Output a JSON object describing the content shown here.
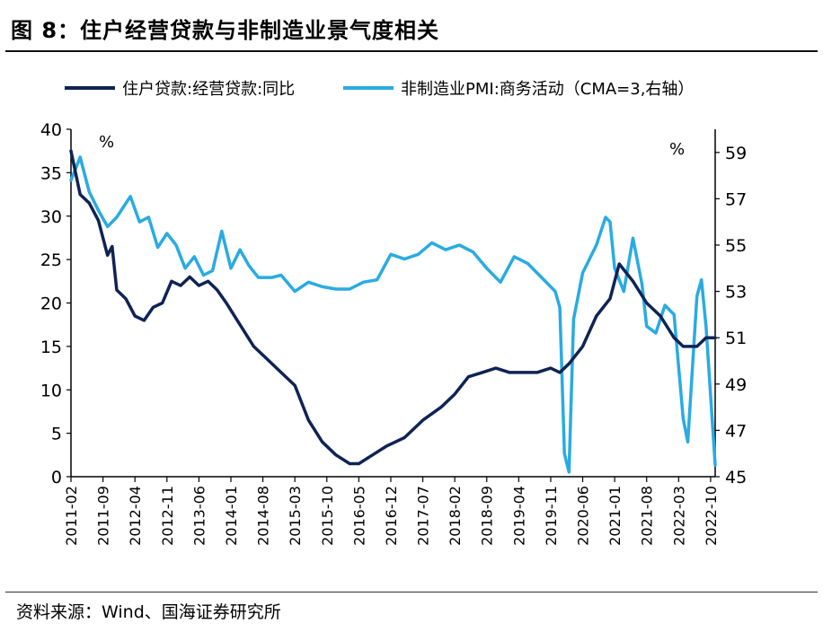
{
  "figure": {
    "title": "图 8：住户经营贷款与非制造业景气度相关",
    "source": "资料来源：Wind、国海证券研究所"
  },
  "colors": {
    "series1": "#0f2355",
    "series2": "#29abe2",
    "axis": "#000000"
  },
  "chart_data": {
    "type": "line",
    "title": "",
    "unit_left": "%",
    "unit_right": "%",
    "yleft": {
      "min": 0,
      "max": 40,
      "ticks": [
        0,
        5,
        10,
        15,
        20,
        25,
        30,
        35,
        40
      ]
    },
    "yright": {
      "min": 45,
      "max": 60,
      "ticks": [
        45,
        47,
        49,
        51,
        53,
        55,
        57,
        59
      ]
    },
    "x_start": "2011-02",
    "x_end": "2022-11",
    "xticks": [
      "2011-02",
      "2011-09",
      "2012-04",
      "2012-11",
      "2013-06",
      "2014-01",
      "2014-08",
      "2015-03",
      "2015-10",
      "2016-05",
      "2016-12",
      "2017-07",
      "2018-02",
      "2018-09",
      "2019-04",
      "2019-11",
      "2020-06",
      "2021-01",
      "2021-08",
      "2022-03",
      "2022-10"
    ],
    "series": [
      {
        "name": "住户贷款:经营贷款:同比",
        "axis": "left",
        "points": [
          [
            "2011-02",
            37.5
          ],
          [
            "2011-04",
            32.5
          ],
          [
            "2011-06",
            31.5
          ],
          [
            "2011-08",
            29.5
          ],
          [
            "2011-10",
            25.5
          ],
          [
            "2011-11",
            26.5
          ],
          [
            "2011-12",
            21.5
          ],
          [
            "2012-02",
            20.5
          ],
          [
            "2012-04",
            18.5
          ],
          [
            "2012-06",
            18.0
          ],
          [
            "2012-08",
            19.5
          ],
          [
            "2012-10",
            20.0
          ],
          [
            "2012-12",
            22.5
          ],
          [
            "2013-02",
            22.0
          ],
          [
            "2013-04",
            23.0
          ],
          [
            "2013-06",
            22.0
          ],
          [
            "2013-08",
            22.5
          ],
          [
            "2013-10",
            21.5
          ],
          [
            "2013-12",
            20.0
          ],
          [
            "2014-03",
            17.5
          ],
          [
            "2014-06",
            15.0
          ],
          [
            "2014-09",
            13.5
          ],
          [
            "2014-12",
            12.0
          ],
          [
            "2015-03",
            10.5
          ],
          [
            "2015-06",
            6.5
          ],
          [
            "2015-09",
            4.0
          ],
          [
            "2015-12",
            2.5
          ],
          [
            "2016-03",
            1.5
          ],
          [
            "2016-05",
            1.5
          ],
          [
            "2016-08",
            2.5
          ],
          [
            "2016-11",
            3.5
          ],
          [
            "2017-03",
            4.5
          ],
          [
            "2017-07",
            6.5
          ],
          [
            "2017-11",
            8.0
          ],
          [
            "2018-02",
            9.5
          ],
          [
            "2018-05",
            11.5
          ],
          [
            "2018-08",
            12.0
          ],
          [
            "2018-11",
            12.5
          ],
          [
            "2019-02",
            12.0
          ],
          [
            "2019-05",
            12.0
          ],
          [
            "2019-08",
            12.0
          ],
          [
            "2019-11",
            12.5
          ],
          [
            "2020-01",
            12.0
          ],
          [
            "2020-03",
            13.0
          ],
          [
            "2020-06",
            15.0
          ],
          [
            "2020-09",
            18.5
          ],
          [
            "2020-12",
            20.5
          ],
          [
            "2021-02",
            24.5
          ],
          [
            "2021-05",
            22.5
          ],
          [
            "2021-08",
            20.0
          ],
          [
            "2021-11",
            18.5
          ],
          [
            "2022-02",
            16.0
          ],
          [
            "2022-04",
            15.0
          ],
          [
            "2022-07",
            15.0
          ],
          [
            "2022-09",
            16.0
          ],
          [
            "2022-11",
            16.0
          ]
        ]
      },
      {
        "name": "非制造业PMI:商务活动（CMA=3,右轴）",
        "axis": "right",
        "points": [
          [
            "2011-02",
            57.8
          ],
          [
            "2011-04",
            58.8
          ],
          [
            "2011-06",
            57.3
          ],
          [
            "2011-08",
            56.5
          ],
          [
            "2011-10",
            55.8
          ],
          [
            "2011-12",
            56.2
          ],
          [
            "2012-03",
            57.1
          ],
          [
            "2012-05",
            56.0
          ],
          [
            "2012-07",
            56.2
          ],
          [
            "2012-09",
            54.9
          ],
          [
            "2012-11",
            55.5
          ],
          [
            "2013-01",
            55.0
          ],
          [
            "2013-03",
            54.0
          ],
          [
            "2013-05",
            54.5
          ],
          [
            "2013-07",
            53.7
          ],
          [
            "2013-09",
            53.9
          ],
          [
            "2013-11",
            55.6
          ],
          [
            "2014-01",
            54.0
          ],
          [
            "2014-03",
            54.8
          ],
          [
            "2014-05",
            54.1
          ],
          [
            "2014-07",
            53.6
          ],
          [
            "2014-10",
            53.6
          ],
          [
            "2014-12",
            53.7
          ],
          [
            "2015-03",
            53.0
          ],
          [
            "2015-06",
            53.4
          ],
          [
            "2015-09",
            53.2
          ],
          [
            "2015-12",
            53.1
          ],
          [
            "2016-03",
            53.1
          ],
          [
            "2016-06",
            53.4
          ],
          [
            "2016-09",
            53.5
          ],
          [
            "2016-12",
            54.6
          ],
          [
            "2017-03",
            54.4
          ],
          [
            "2017-06",
            54.6
          ],
          [
            "2017-09",
            55.1
          ],
          [
            "2017-12",
            54.8
          ],
          [
            "2018-03",
            55.0
          ],
          [
            "2018-06",
            54.7
          ],
          [
            "2018-09",
            54.0
          ],
          [
            "2018-12",
            53.4
          ],
          [
            "2019-03",
            54.5
          ],
          [
            "2019-06",
            54.2
          ],
          [
            "2019-09",
            53.6
          ],
          [
            "2019-11",
            53.2
          ],
          [
            "2019-12",
            53.0
          ],
          [
            "2020-01",
            52.3
          ],
          [
            "2020-02",
            46.0
          ],
          [
            "2020-03",
            45.2
          ],
          [
            "2020-04",
            51.8
          ],
          [
            "2020-06",
            53.8
          ],
          [
            "2020-09",
            55.0
          ],
          [
            "2020-11",
            56.2
          ],
          [
            "2020-12",
            56.0
          ],
          [
            "2021-01",
            54.0
          ],
          [
            "2021-03",
            53.0
          ],
          [
            "2021-05",
            55.3
          ],
          [
            "2021-07",
            53.3
          ],
          [
            "2021-08",
            51.5
          ],
          [
            "2021-10",
            51.2
          ],
          [
            "2021-12",
            52.4
          ],
          [
            "2022-02",
            52.0
          ],
          [
            "2022-04",
            47.5
          ],
          [
            "2022-05",
            46.5
          ],
          [
            "2022-07",
            52.8
          ],
          [
            "2022-08",
            53.5
          ],
          [
            "2022-09",
            51.5
          ],
          [
            "2022-10",
            48.5
          ],
          [
            "2022-11",
            45.5
          ]
        ]
      }
    ]
  }
}
